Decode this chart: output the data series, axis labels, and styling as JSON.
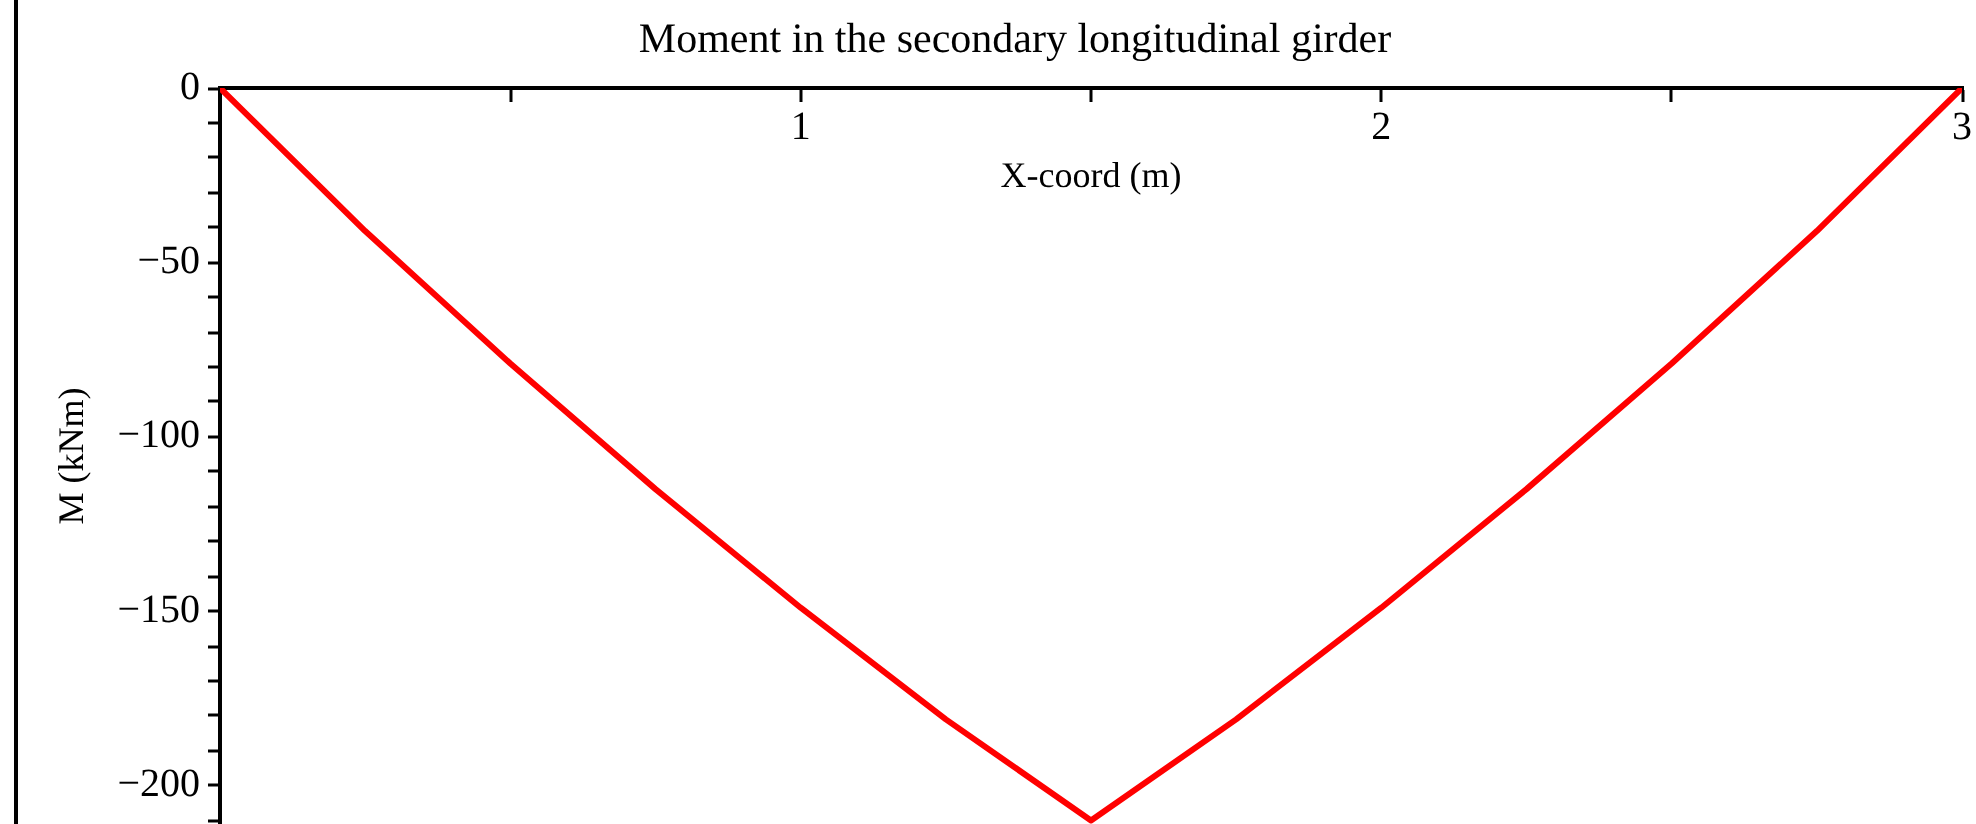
{
  "chart_data": {
    "type": "line",
    "title": "Moment in the secondary longitudinal girder",
    "xlabel": "X-coord (m)",
    "ylabel": "M (kNm)",
    "x": [
      0,
      0.25,
      0.5,
      0.75,
      1,
      1.25,
      1.5,
      1.75,
      2,
      2.25,
      2.5,
      2.75,
      3
    ],
    "series": [
      {
        "color": "#ff0000",
        "values": [
          0,
          -41,
          -79,
          -115,
          -149,
          -181,
          -210,
          -181,
          -149,
          -115,
          -79,
          -41,
          0
        ]
      }
    ],
    "xlim": [
      0,
      3
    ],
    "ylim": [
      -211,
      0
    ],
    "xticks": [
      {
        "value": 0.5,
        "label": null
      },
      1,
      {
        "value": 1.5,
        "label": null
      },
      2,
      {
        "value": 2.5,
        "label": null
      },
      3
    ],
    "yticks": [
      0,
      {
        "value": -10,
        "label": null
      },
      {
        "value": -20,
        "label": null
      },
      {
        "value": -30,
        "label": null
      },
      {
        "value": -40,
        "label": null
      },
      {
        "value": -50,
        "label": "−50"
      },
      {
        "value": -60,
        "label": null
      },
      {
        "value": -70,
        "label": null
      },
      {
        "value": -80,
        "label": null
      },
      {
        "value": -90,
        "label": null
      },
      {
        "value": -100,
        "label": "−100"
      },
      {
        "value": -110,
        "label": null
      },
      {
        "value": -120,
        "label": null
      },
      {
        "value": -130,
        "label": null
      },
      {
        "value": -140,
        "label": null
      },
      {
        "value": -150,
        "label": "−150"
      },
      {
        "value": -160,
        "label": null
      },
      {
        "value": -170,
        "label": null
      },
      {
        "value": -180,
        "label": null
      },
      {
        "value": -190,
        "label": null
      },
      {
        "value": -200,
        "label": "−200"
      },
      {
        "value": -210,
        "label": null
      }
    ]
  }
}
